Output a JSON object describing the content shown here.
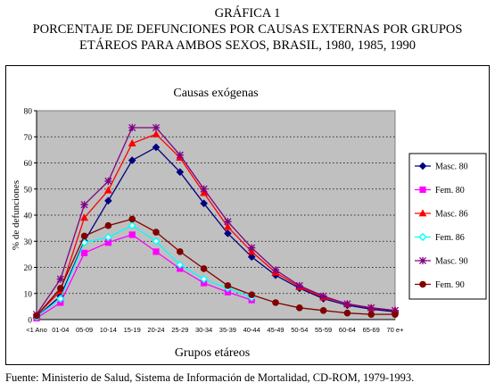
{
  "header": {
    "line1": "GRÁFICA 1",
    "line2": "PORCENTAJE DE DEFUNCIONES POR CAUSAS EXTERNAS POR GRUPOS",
    "line3": "ETÁREOS PARA AMBOS SEXOS, BRASIL, 1980, 1985, 1990"
  },
  "source": "Fuente: Ministerio de Salud, Sistema de Información de Mortalidad, CD-ROM, 1979-1993.",
  "chart_data": {
    "type": "line",
    "title": "Causas exógenas",
    "xlabel": "Grupos etáreos",
    "ylabel": "% de defunciones",
    "ylim": [
      0,
      80
    ],
    "yticks": [
      0,
      10,
      20,
      30,
      40,
      50,
      60,
      70,
      80
    ],
    "grid": "horizontal dotted",
    "legend_position": "right",
    "plot_background": "#c0c0c0",
    "categories": [
      "<1 Ano",
      "01-04",
      "05-09",
      "10-14",
      "15-19",
      "20-24",
      "25-29",
      "30-34",
      "35-39",
      "40-44",
      "45-49",
      "50-54",
      "55-59",
      "60-64",
      "65-69",
      "70 e+"
    ],
    "series": [
      {
        "name": "Masc. 80",
        "color": "#000080",
        "marker": "diamond",
        "values": [
          1,
          9,
          30,
          45.5,
          61,
          66,
          56.5,
          44.5,
          33,
          24,
          17,
          12,
          8,
          5.5,
          4,
          3
        ]
      },
      {
        "name": "Fem. 80",
        "color": "#ff00ff",
        "marker": "square",
        "values": [
          0.5,
          6.5,
          25.5,
          29.5,
          32.5,
          26,
          19.5,
          14,
          10.5,
          7.5,
          null,
          null,
          null,
          null,
          null,
          null
        ]
      },
      {
        "name": "Masc. 86",
        "color": "#ff0000",
        "marker": "triangle",
        "values": [
          1.5,
          11,
          39,
          49.5,
          67.5,
          71,
          62,
          48.5,
          35.5,
          26,
          18,
          12.5,
          8.5,
          6,
          4.5,
          3.5
        ]
      },
      {
        "name": "Fem. 86",
        "color": "#00ffff",
        "marker": "diamond-open",
        "values": [
          1,
          8,
          29.5,
          31.5,
          36,
          30,
          21,
          15.5,
          12,
          8.5,
          null,
          null,
          null,
          null,
          null,
          null
        ]
      },
      {
        "name": "Masc. 90",
        "color": "#800080",
        "marker": "star",
        "values": [
          2,
          15.5,
          44,
          53,
          73.5,
          73.5,
          63,
          50,
          37.5,
          27.5,
          19,
          13,
          9,
          6,
          4.5,
          3.5
        ]
      },
      {
        "name": "Fem. 90",
        "color": "#800000",
        "marker": "circle",
        "values": [
          1.5,
          12,
          32,
          36,
          38.5,
          33.5,
          26,
          19.5,
          13,
          9.5,
          6.5,
          4.5,
          3.5,
          2.5,
          2,
          2
        ]
      }
    ]
  }
}
